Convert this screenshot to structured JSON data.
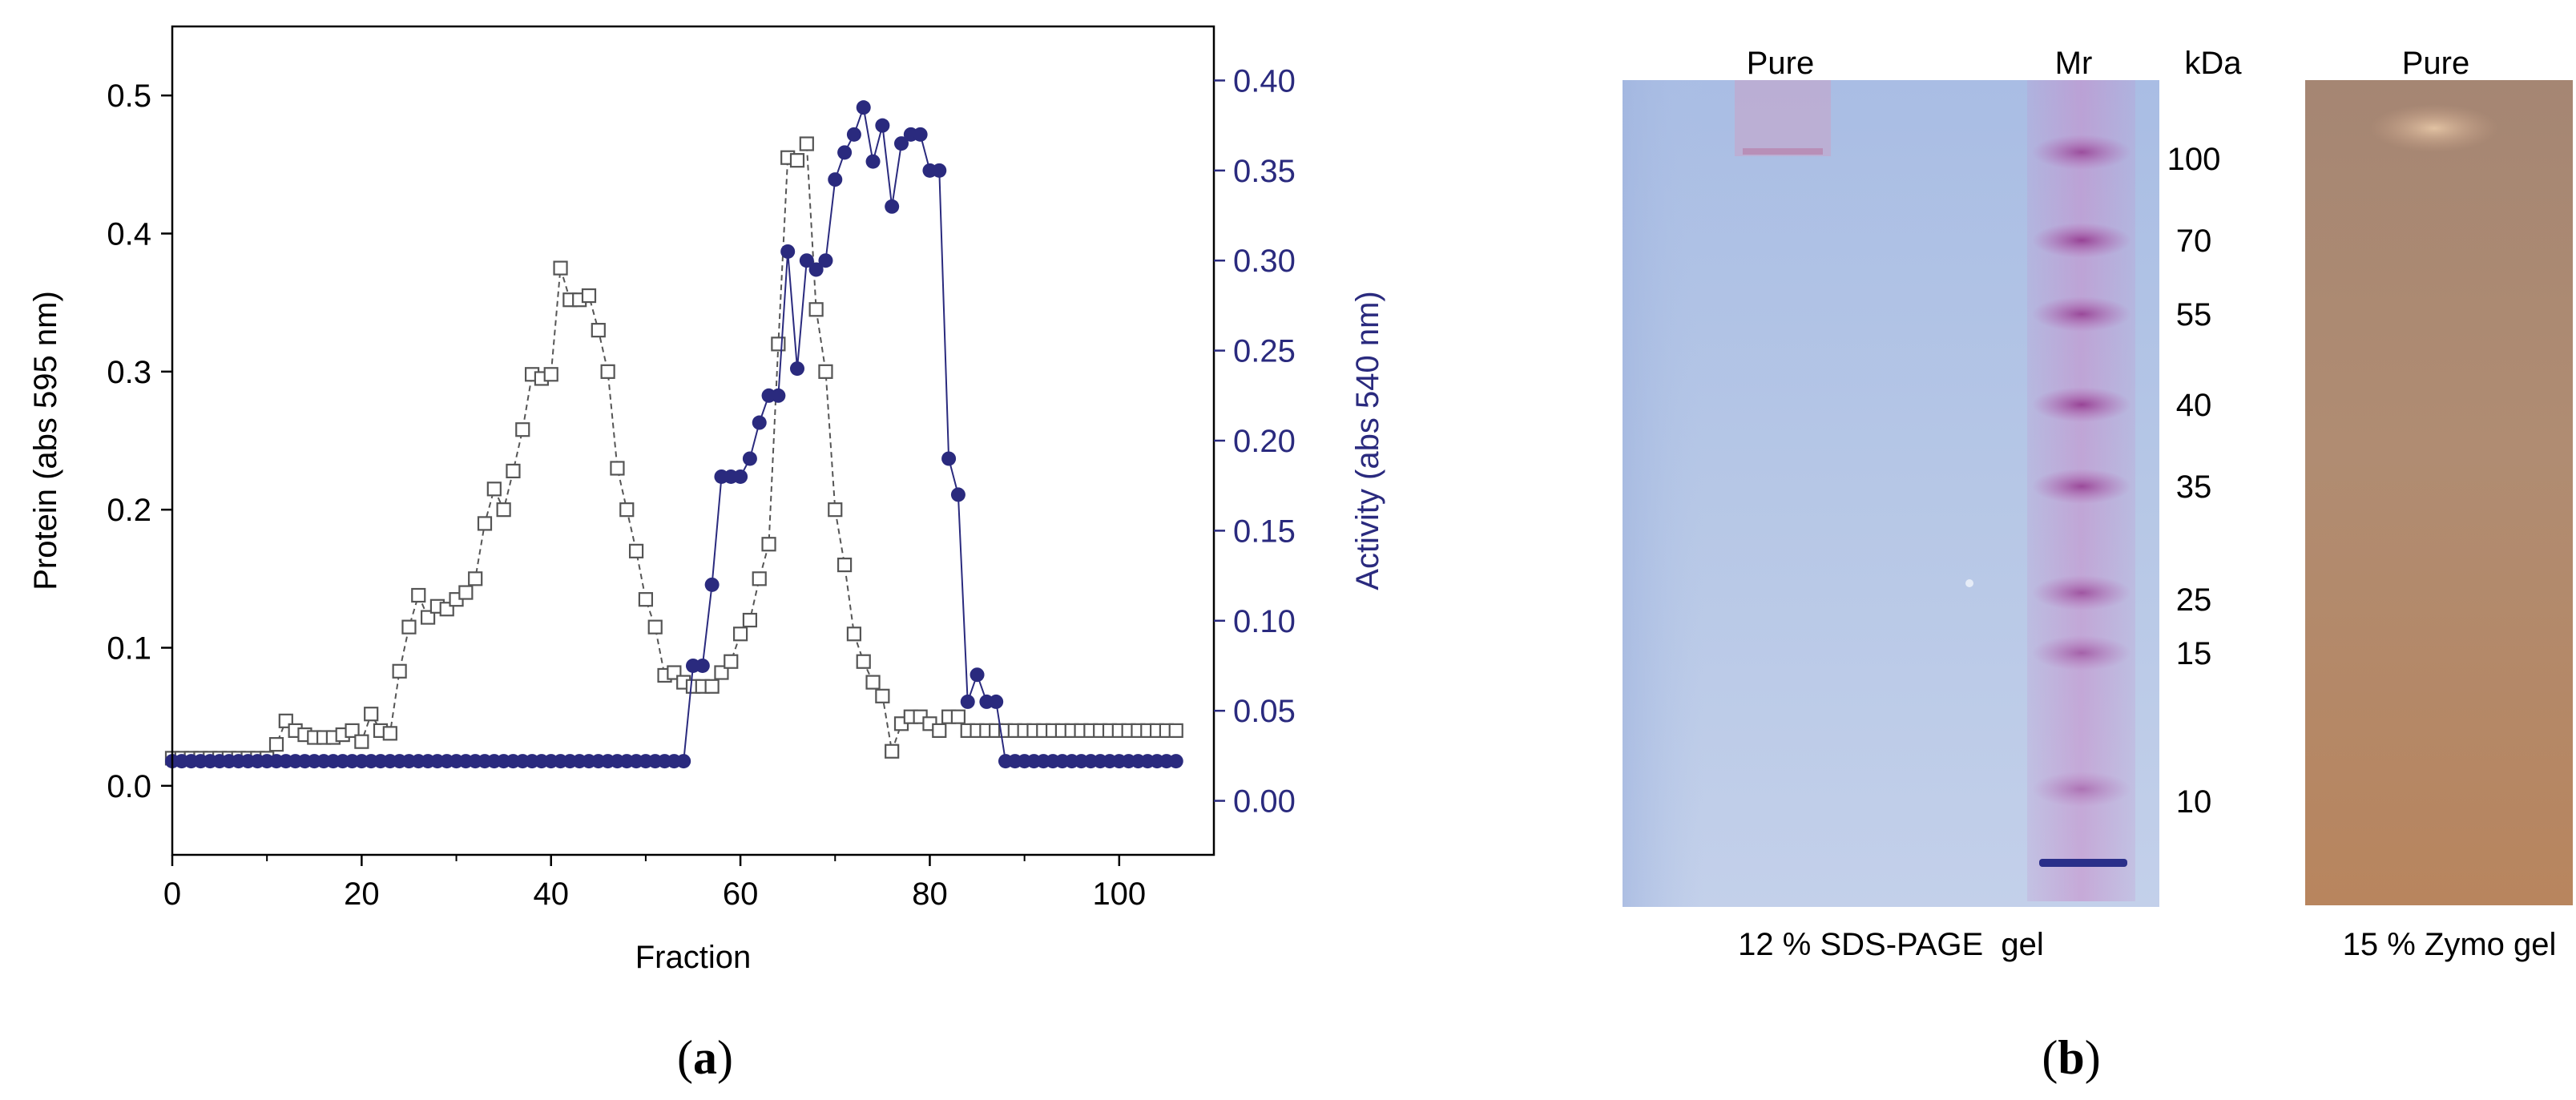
{
  "figure": {
    "panel_a_label": {
      "open": "(",
      "letter": "a",
      "close": ")"
    },
    "panel_b_label": {
      "open": "(",
      "letter": "b",
      "close": ")"
    }
  },
  "colors": {
    "protein": "#555555",
    "activity": "#2a2a7e",
    "axis": "#000000",
    "gel_sds": "#b4c6e6",
    "gel_zymo": "#b08a70",
    "ladder": "#b24c9e"
  },
  "chart_data": [
    {
      "type": "line",
      "xlabel": "Fraction",
      "ylabel_left": "Protein (abs 595 nm)",
      "ylabel_right": "Activity (abs 540 nm)",
      "xlim": [
        0,
        110
      ],
      "ylim_left": [
        -0.05,
        0.55
      ],
      "ylim_right": [
        -0.03,
        0.43
      ],
      "x_ticks": [
        "0",
        "20",
        "40",
        "60",
        "80",
        "100"
      ],
      "y_ticks_left": [
        "0.0",
        "0.1",
        "0.2",
        "0.3",
        "0.4",
        "0.5"
      ],
      "y_ticks_right": [
        "0.00",
        "0.05",
        "0.10",
        "0.15",
        "0.20",
        "0.25",
        "0.30",
        "0.35",
        "0.40"
      ],
      "series": [
        {
          "name": "Protein",
          "axis": "left",
          "marker": "open-square",
          "x": [
            0,
            1,
            2,
            3,
            4,
            5,
            6,
            7,
            8,
            9,
            10,
            11,
            12,
            13,
            14,
            15,
            16,
            17,
            18,
            19,
            20,
            21,
            22,
            23,
            24,
            25,
            26,
            27,
            28,
            29,
            30,
            31,
            32,
            33,
            34,
            35,
            36,
            37,
            38,
            39,
            40,
            41,
            42,
            43,
            44,
            45,
            46,
            47,
            48,
            49,
            50,
            51,
            52,
            53,
            54,
            55,
            56,
            57,
            58,
            59,
            60,
            61,
            62,
            63,
            64,
            65,
            66,
            67,
            68,
            69,
            70,
            71,
            72,
            73,
            74,
            75,
            76,
            77,
            78,
            79,
            80,
            81,
            82,
            83,
            84,
            85,
            86,
            87,
            88,
            89,
            90,
            91,
            92,
            93,
            94,
            95,
            96,
            97,
            98,
            99,
            100,
            101,
            102,
            103,
            104,
            105,
            106
          ],
          "values": [
            0.02,
            0.02,
            0.02,
            0.02,
            0.02,
            0.02,
            0.02,
            0.02,
            0.02,
            0.02,
            0.02,
            0.03,
            0.047,
            0.04,
            0.037,
            0.035,
            0.035,
            0.035,
            0.037,
            0.04,
            0.032,
            0.052,
            0.04,
            0.038,
            0.083,
            0.115,
            0.138,
            0.122,
            0.13,
            0.128,
            0.135,
            0.14,
            0.15,
            0.19,
            0.215,
            0.2,
            0.228,
            0.258,
            0.298,
            0.295,
            0.298,
            0.375,
            0.352,
            0.352,
            0.355,
            0.33,
            0.3,
            0.23,
            0.2,
            0.17,
            0.135,
            0.115,
            0.08,
            0.082,
            0.075,
            0.072,
            0.072,
            0.072,
            0.082,
            0.09,
            0.11,
            0.12,
            0.15,
            0.175,
            0.32,
            0.455,
            0.453,
            0.465,
            0.345,
            0.3,
            0.2,
            0.16,
            0.11,
            0.09,
            0.075,
            0.065,
            0.025,
            0.045,
            0.05,
            0.05,
            0.045,
            0.04,
            0.05,
            0.05,
            0.04,
            0.04,
            0.04,
            0.04,
            0.04,
            0.04,
            0.04,
            0.04,
            0.04,
            0.04,
            0.04,
            0.04,
            0.04,
            0.04,
            0.04,
            0.04,
            0.04,
            0.04,
            0.04,
            0.04,
            0.04,
            0.04,
            0.04
          ]
        },
        {
          "name": "Activity",
          "axis": "right",
          "marker": "filled-circle",
          "x": [
            0,
            1,
            2,
            3,
            4,
            5,
            6,
            7,
            8,
            9,
            10,
            11,
            12,
            13,
            14,
            15,
            16,
            17,
            18,
            19,
            20,
            21,
            22,
            23,
            24,
            25,
            26,
            27,
            28,
            29,
            30,
            31,
            32,
            33,
            34,
            35,
            36,
            37,
            38,
            39,
            40,
            41,
            42,
            43,
            44,
            45,
            46,
            47,
            48,
            49,
            50,
            51,
            52,
            53,
            54,
            55,
            56,
            57,
            58,
            59,
            60,
            61,
            62,
            63,
            64,
            65,
            66,
            67,
            68,
            69,
            70,
            71,
            72,
            73,
            74,
            75,
            76,
            77,
            78,
            79,
            80,
            81,
            82,
            83,
            84,
            85,
            86,
            87,
            88,
            89,
            90,
            91,
            92,
            93,
            94,
            95,
            96,
            97,
            98,
            99,
            100,
            101,
            102,
            103,
            104,
            105,
            106
          ],
          "values": [
            0.022,
            0.022,
            0.022,
            0.022,
            0.022,
            0.022,
            0.022,
            0.022,
            0.022,
            0.022,
            0.022,
            0.022,
            0.022,
            0.022,
            0.022,
            0.022,
            0.022,
            0.022,
            0.022,
            0.022,
            0.022,
            0.022,
            0.022,
            0.022,
            0.022,
            0.022,
            0.022,
            0.022,
            0.022,
            0.022,
            0.022,
            0.022,
            0.022,
            0.022,
            0.022,
            0.022,
            0.022,
            0.022,
            0.022,
            0.022,
            0.022,
            0.022,
            0.022,
            0.022,
            0.022,
            0.022,
            0.022,
            0.022,
            0.022,
            0.022,
            0.022,
            0.022,
            0.022,
            0.022,
            0.022,
            0.075,
            0.075,
            0.12,
            0.18,
            0.18,
            0.18,
            0.19,
            0.21,
            0.225,
            0.225,
            0.305,
            0.24,
            0.3,
            0.295,
            0.3,
            0.345,
            0.36,
            0.37,
            0.385,
            0.355,
            0.375,
            0.33,
            0.365,
            0.37,
            0.37,
            0.35,
            0.35,
            0.19,
            0.17,
            0.055,
            0.07,
            0.055,
            0.055,
            0.022,
            0.022,
            0.022,
            0.022,
            0.022,
            0.022,
            0.022,
            0.022,
            0.022,
            0.022,
            0.022,
            0.022,
            0.022,
            0.022,
            0.022,
            0.022,
            0.022,
            0.022,
            0.022
          ]
        }
      ]
    },
    {
      "type": "gel-image",
      "sds_gel": {
        "lane_label_sample": "Pure",
        "lane_label_marker": "Mr",
        "unit_label": "kDa",
        "caption": "12 % SDS-PAGE  gel",
        "marker_bands": [
          "100",
          "70",
          "55",
          "40",
          "35",
          "25",
          "15",
          "10"
        ]
      },
      "zymo_gel": {
        "lane_label_sample": "Pure",
        "caption": "15 % Zymo gel"
      }
    }
  ]
}
